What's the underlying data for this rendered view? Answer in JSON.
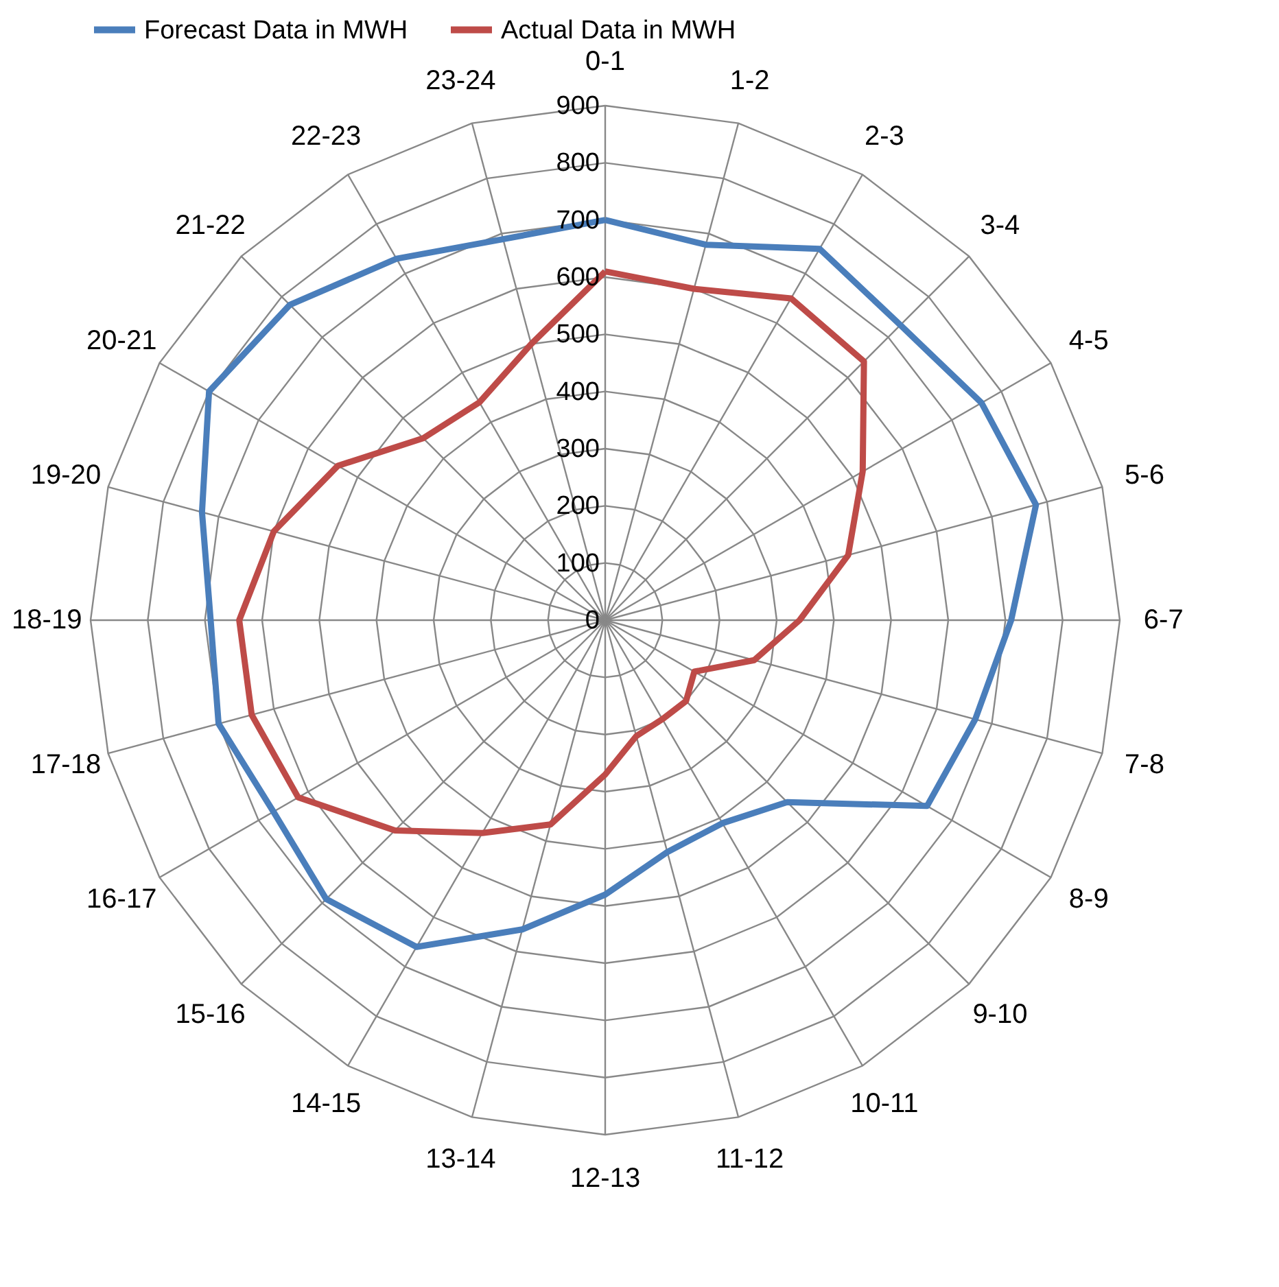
{
  "chart_data": {
    "type": "radar",
    "categories": [
      "0-1",
      "1-2",
      "2-3",
      "3-4",
      "4-5",
      "5-6",
      "6-7",
      "7-8",
      "8-9",
      "9-10",
      "10-11",
      "11-12",
      "12-13",
      "13-14",
      "14-15",
      "15-16",
      "16-17",
      "17-18",
      "18-19",
      "19-20",
      "20-21",
      "21-22",
      "22-23",
      "23-24"
    ],
    "series": [
      {
        "name": "Forecast Data in MWH",
        "color": "#4a7ebb",
        "values": [
          700,
          680,
          750,
          730,
          760,
          780,
          710,
          670,
          650,
          450,
          410,
          420,
          480,
          560,
          660,
          690,
          670,
          700,
          690,
          730,
          800,
          780,
          730,
          690
        ]
      },
      {
        "name": "Actual Data in MWH",
        "color": "#be4b48",
        "values": [
          610,
          600,
          650,
          640,
          520,
          440,
          340,
          270,
          180,
          200,
          200,
          210,
          270,
          370,
          430,
          520,
          620,
          640,
          640,
          600,
          540,
          450,
          440,
          500
        ]
      }
    ],
    "ylim": [
      0,
      900
    ],
    "yticks": [
      0,
      100,
      200,
      300,
      400,
      500,
      600,
      700,
      800,
      900
    ],
    "grid": true,
    "legend": "top"
  }
}
